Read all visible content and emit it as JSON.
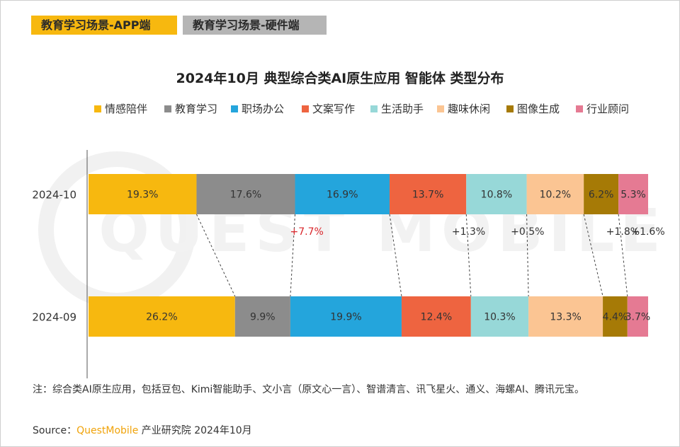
{
  "tabs": [
    {
      "label": "教育学习场景-APP端",
      "active": true
    },
    {
      "label": "教育学习场景-硬件端",
      "active": false
    }
  ],
  "watermark": "QUEST MOBILE",
  "note": "注：综合类AI原生应用，包括豆包、Kimi智能助手、文小言（原文心一言）、智谱清言、讯飞星火、通义、海螺AI、腾讯元宝。",
  "source": {
    "prefix": "Source：",
    "brand": "QuestMobile",
    "suffix": " 产业研究院 2024年10月"
  },
  "chart_data": {
    "type": "bar",
    "stacked": true,
    "orientation": "horizontal",
    "percent_stacked": true,
    "title": "2024年10月 典型综合类AI原生应用 智能体 类型分布",
    "legend_position": "top",
    "categories": [
      "2024-10",
      "2024-09"
    ],
    "series": [
      {
        "name": "情感陪伴",
        "color": "#f7b80f",
        "values": [
          19.3,
          26.2
        ],
        "labels": [
          "19.3%",
          "26.2%"
        ],
        "change": ""
      },
      {
        "name": "教育学习",
        "color": "#8c8c8c",
        "values": [
          17.6,
          9.9
        ],
        "labels": [
          "17.6%",
          "9.9%"
        ],
        "change": "+7.7%"
      },
      {
        "name": "职场办公",
        "color": "#24a5dc",
        "values": [
          16.9,
          19.9
        ],
        "labels": [
          "16.9%",
          "19.9%"
        ],
        "change": ""
      },
      {
        "name": "文案写作",
        "color": "#ee6440",
        "values": [
          13.7,
          12.4
        ],
        "labels": [
          "13.7%",
          "12.4%"
        ],
        "change": "+1.3%"
      },
      {
        "name": "生活助手",
        "color": "#97d8d8",
        "values": [
          10.8,
          10.3
        ],
        "labels": [
          "10.8%",
          "10.3%"
        ],
        "change": "+0.5%"
      },
      {
        "name": "趣味休闲",
        "color": "#fbc593",
        "values": [
          10.2,
          13.3
        ],
        "labels": [
          "10.2%",
          "13.3%"
        ],
        "change": ""
      },
      {
        "name": "图像生成",
        "color": "#a67a06",
        "values": [
          6.2,
          4.4
        ],
        "labels": [
          "6.2%",
          "4.4%"
        ],
        "change": "+1.8%"
      },
      {
        "name": "行业顾问",
        "color": "#e57a93",
        "values": [
          5.3,
          3.7
        ],
        "labels": [
          "5.3%",
          "3.7%"
        ],
        "change": "+1.6%"
      }
    ],
    "highlight_color": "#d9262b",
    "highlighted_series": "教育学习"
  }
}
